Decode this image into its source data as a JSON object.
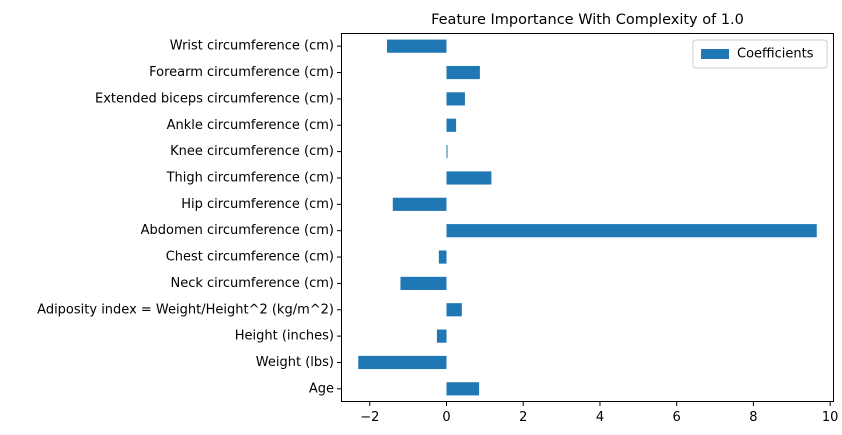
{
  "chart_data": {
    "type": "bar",
    "orientation": "horizontal",
    "title": "Feature Importance With Complexity of 1.0",
    "xlabel": "",
    "ylabel": "",
    "categories": [
      "Age",
      "Weight (lbs)",
      "Height (inches)",
      "Adiposity index = Weight/Height^2 (kg/m^2)",
      "Neck circumference (cm)",
      "Chest circumference (cm)",
      "Abdomen circumference (cm)",
      "Hip circumference (cm)",
      "Thigh circumference (cm)",
      "Knee circumference (cm)",
      "Ankle circumference (cm)",
      "Extended biceps circumference (cm)",
      "Forearm circumference (cm)",
      "Wrist circumference (cm)"
    ],
    "series": [
      {
        "name": "Coefficients",
        "color": "#1f77b4",
        "values": [
          0.85,
          -2.3,
          -0.25,
          0.4,
          -1.2,
          -0.2,
          9.65,
          -1.4,
          1.17,
          0.02,
          0.25,
          0.48,
          0.87,
          -1.55
        ]
      }
    ],
    "xlim": [
      -2.75,
      10.1
    ],
    "xticks": [
      -2,
      0,
      2,
      4,
      6,
      8,
      10
    ],
    "xtick_labels": [
      "−2",
      "0",
      "2",
      "4",
      "6",
      "8",
      "10"
    ],
    "grid": false,
    "legend_position": "top-right"
  }
}
